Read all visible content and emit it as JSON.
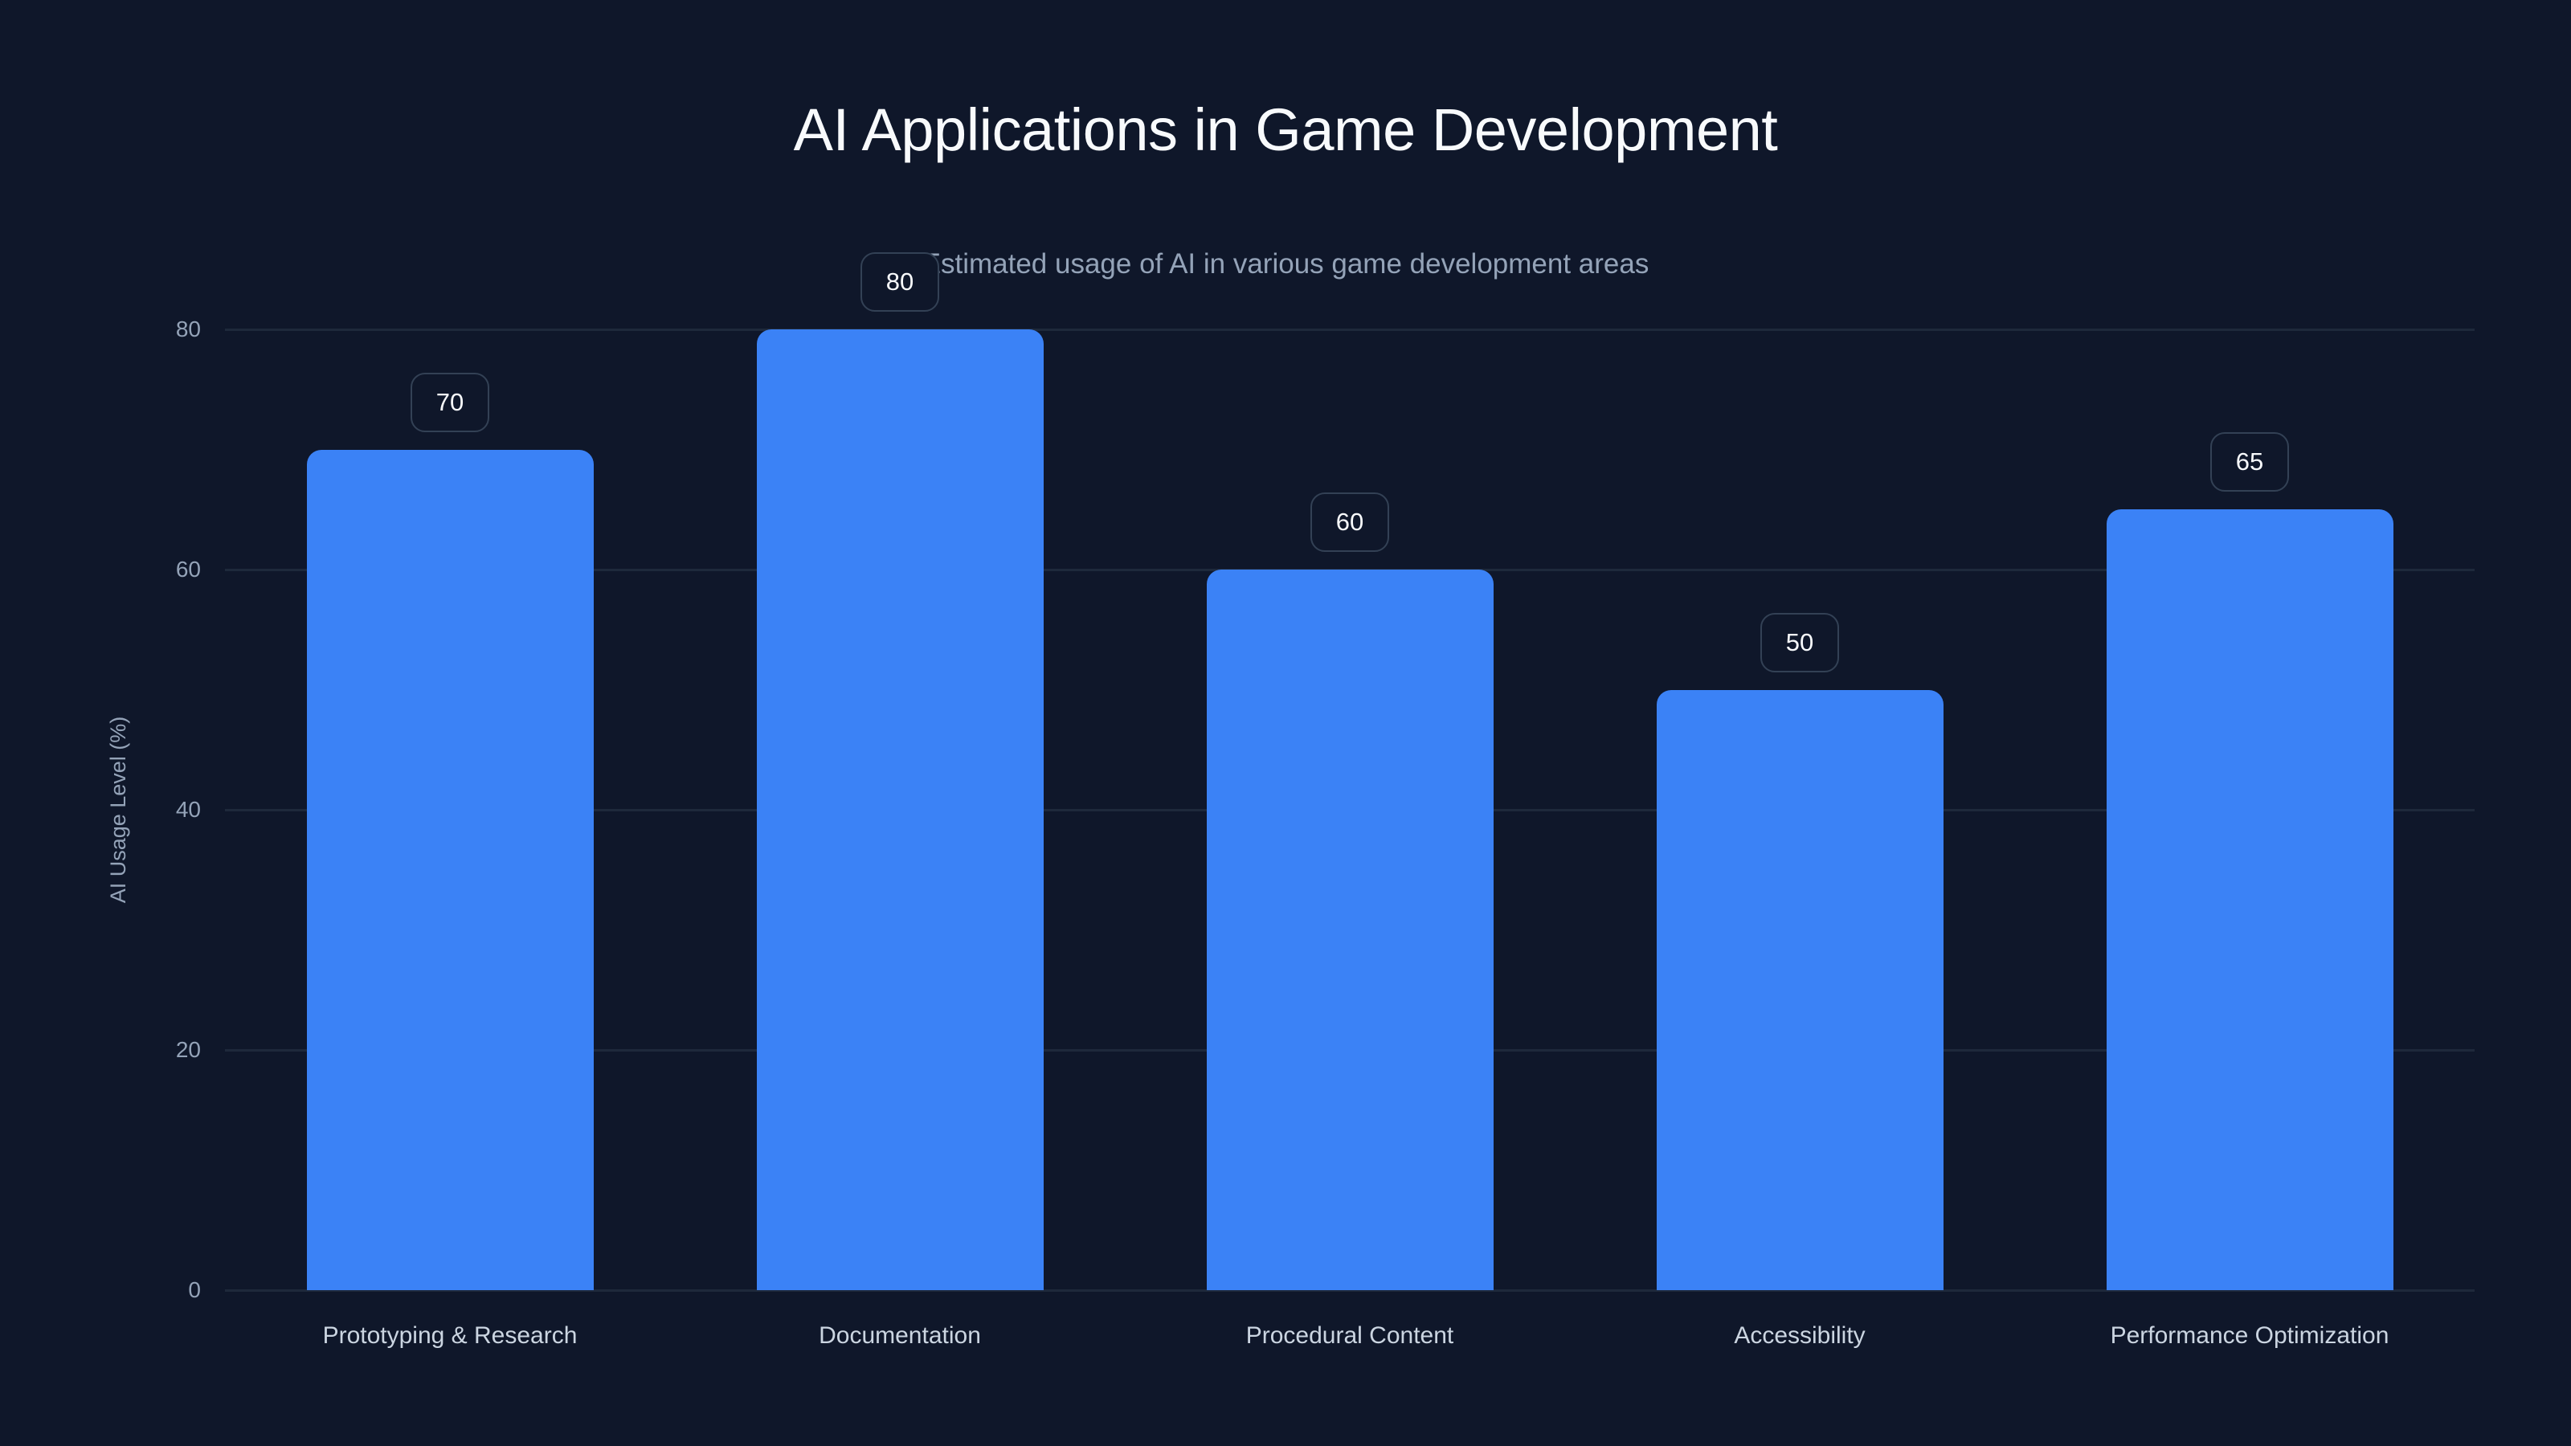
{
  "chart_data": {
    "type": "bar",
    "title": "AI Applications in Game Development",
    "subtitle": "Estimated usage of AI in various game development areas",
    "xlabel": "",
    "ylabel": "AI Usage Level (%)",
    "categories": [
      "Prototyping & Research",
      "Documentation",
      "Procedural Content",
      "Accessibility",
      "Performance Optimization"
    ],
    "values": [
      70,
      80,
      60,
      50,
      65
    ],
    "ylim": [
      0,
      80
    ],
    "yticks": [
      0,
      20,
      40,
      60,
      80
    ],
    "grid": true,
    "legend": "none",
    "data_labels": true,
    "colors": {
      "background": "#0f172a",
      "bar": "#3b82f6",
      "grid": "#1e293b",
      "label_border": "#334155",
      "title": "#f8fafc",
      "subtitle": "#94a3b8",
      "tick": "#94a3b8",
      "category_label": "#cbd5e1"
    }
  }
}
